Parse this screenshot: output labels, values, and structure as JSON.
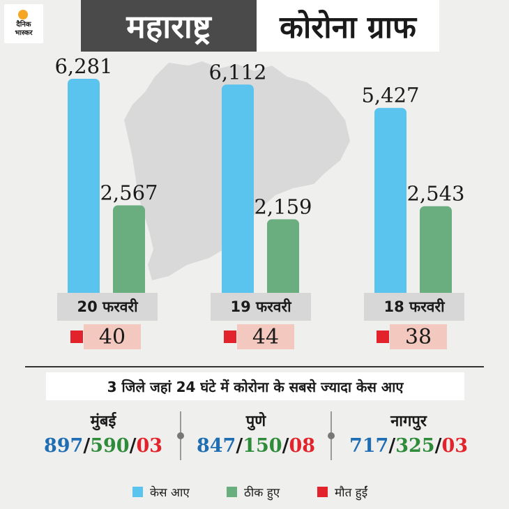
{
  "logo": {
    "line1": "दैनिक",
    "line2": "भास्कर"
  },
  "header": {
    "title_left": "महाराष्ट्र",
    "title_right": "कोरोना ग्राफ"
  },
  "colors": {
    "cases": "#5bc4ee",
    "recovered": "#6aae80",
    "deaths": "#e3232b",
    "value_blue": "#1f6db3",
    "value_green": "#2e8b3a"
  },
  "chart_data": {
    "type": "bar",
    "categories": [
      "20 फरवरी",
      "19 फरवरी",
      "18 फरवरी"
    ],
    "series": [
      {
        "name": "केस आए",
        "values": [
          6281,
          6112,
          5427
        ],
        "labels": [
          "6,281",
          "6,112",
          "5,427"
        ]
      },
      {
        "name": "ठीक हुए",
        "values": [
          2567,
          2159,
          2543
        ],
        "labels": [
          "2,567",
          "2,159",
          "2,543"
        ]
      },
      {
        "name": "मौत हुईं",
        "values": [
          40,
          44,
          38
        ],
        "labels": [
          "40",
          "44",
          "38"
        ]
      }
    ],
    "title": "कोरोना ग्राफ",
    "ylim": [
      0,
      6281
    ]
  },
  "districts": {
    "title": "3 जिले जहां 24 घंटे में कोरोना के सबसे ज्यादा केस आए",
    "items": [
      {
        "name": "मुंबई",
        "cases": "897",
        "recovered": "590",
        "deaths": "03"
      },
      {
        "name": "पुणे",
        "cases": "847",
        "recovered": "150",
        "deaths": "08"
      },
      {
        "name": "नागपुर",
        "cases": "717",
        "recovered": "325",
        "deaths": "03"
      }
    ]
  },
  "legend": {
    "cases": "केस आए",
    "recovered": "ठीक हुए",
    "deaths": "मौत हुईं"
  }
}
